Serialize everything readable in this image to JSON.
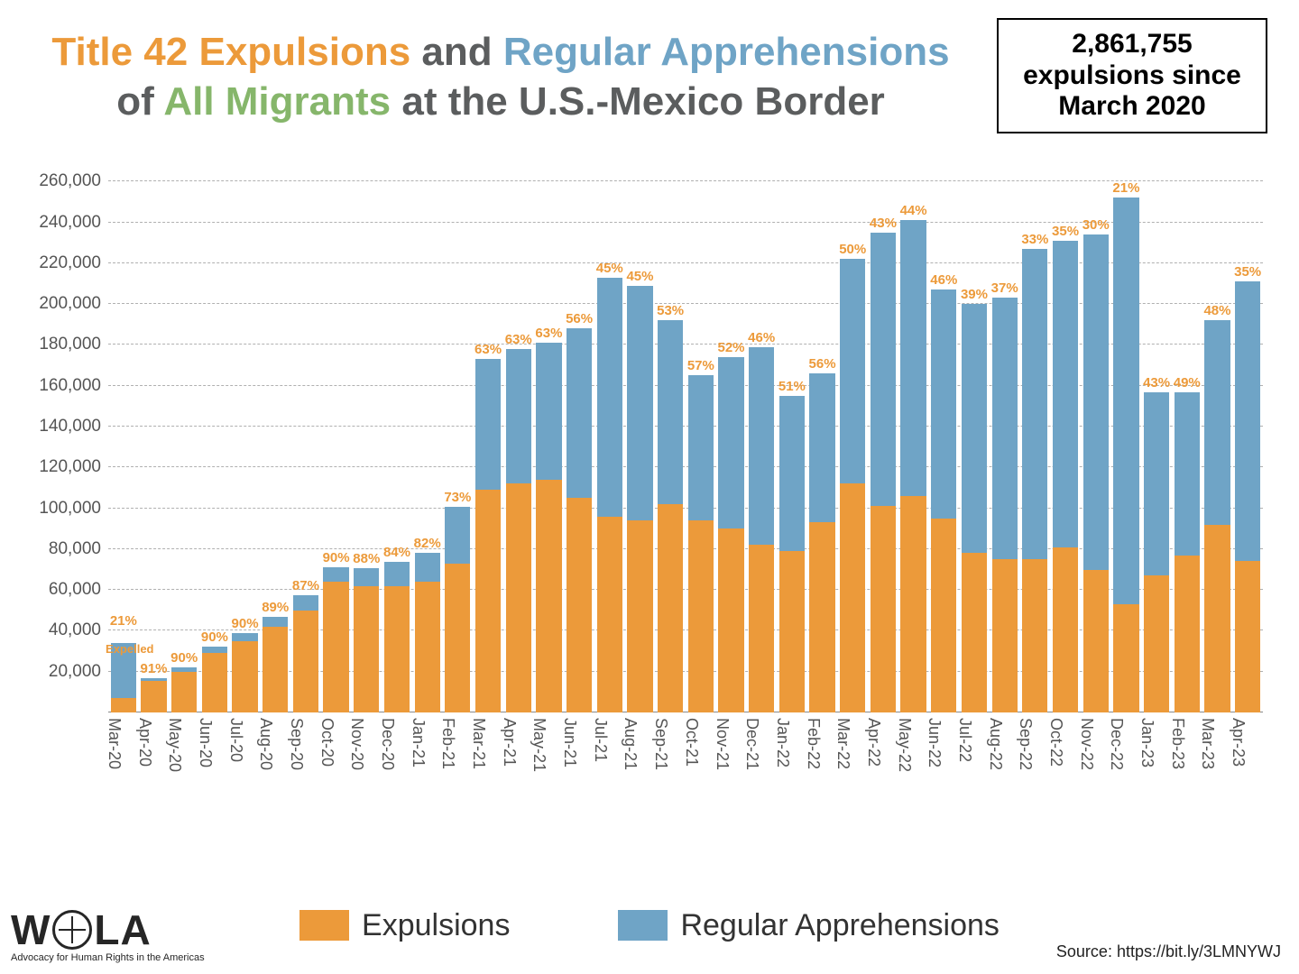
{
  "title": {
    "parts_line1": [
      {
        "text": "Title 42 Expulsions",
        "color": "#ec9a3a"
      },
      {
        "text": " and ",
        "color": "#5b5d5e"
      },
      {
        "text": "Regular Apprehensions",
        "color": "#6fa4c6"
      }
    ],
    "parts_line2": [
      {
        "text": "of ",
        "color": "#5b5d5e"
      },
      {
        "text": "All Migrants",
        "color": "#86b66b"
      },
      {
        "text": " at the U.S.-Mexico Border",
        "color": "#5b5d5e"
      }
    ],
    "fontsize": 44
  },
  "callout": {
    "line1": "2,861,755",
    "line2": "expulsions since",
    "line3": "March 2020"
  },
  "chart": {
    "type": "stacked-bar",
    "y_max": 265000,
    "y_ticks": [
      20000,
      40000,
      60000,
      80000,
      100000,
      120000,
      140000,
      160000,
      180000,
      200000,
      220000,
      240000,
      260000
    ],
    "y_tick_labels": [
      "20,000",
      "40,000",
      "60,000",
      "80,000",
      "100,000",
      "120,000",
      "140,000",
      "160,000",
      "180,000",
      "200,000",
      "220,000",
      "240,000",
      "260,000"
    ],
    "grid_color": "#b0b0b0",
    "expulsions_color": "#ec9a3a",
    "regular_color": "#6fa4c6",
    "label_color": "#ec9a3a",
    "bar_width_ratio": 0.84,
    "data": [
      {
        "label": "Mar-20",
        "exp": 7000,
        "reg": 27000,
        "pct": "21%",
        "extra": "Expelled"
      },
      {
        "label": "Apr-20",
        "exp": 15500,
        "reg": 1500,
        "pct": "91%"
      },
      {
        "label": "May-20",
        "exp": 20000,
        "reg": 2200,
        "pct": "90%"
      },
      {
        "label": "Jun-20",
        "exp": 29000,
        "reg": 3200,
        "pct": "90%"
      },
      {
        "label": "Jul-20",
        "exp": 35000,
        "reg": 4000,
        "pct": "90%"
      },
      {
        "label": "Aug-20",
        "exp": 42000,
        "reg": 5000,
        "pct": "89%"
      },
      {
        "label": "Sep-20",
        "exp": 50000,
        "reg": 7500,
        "pct": "87%"
      },
      {
        "label": "Oct-20",
        "exp": 64000,
        "reg": 7000,
        "pct": "90%"
      },
      {
        "label": "Nov-20",
        "exp": 62000,
        "reg": 8500,
        "pct": "88%"
      },
      {
        "label": "Dec-20",
        "exp": 62000,
        "reg": 11800,
        "pct": "84%"
      },
      {
        "label": "Jan-21",
        "exp": 64000,
        "reg": 14000,
        "pct": "82%"
      },
      {
        "label": "Feb-21",
        "exp": 73000,
        "reg": 27500,
        "pct": "73%"
      },
      {
        "label": "Mar-21",
        "exp": 109000,
        "reg": 64000,
        "pct": "63%"
      },
      {
        "label": "Apr-21",
        "exp": 112000,
        "reg": 66000,
        "pct": "63%"
      },
      {
        "label": "May-21",
        "exp": 114000,
        "reg": 67000,
        "pct": "63%"
      },
      {
        "label": "Jun-21",
        "exp": 105000,
        "reg": 83000,
        "pct": "56%"
      },
      {
        "label": "Jul-21",
        "exp": 96000,
        "reg": 117000,
        "pct": "45%"
      },
      {
        "label": "Aug-21",
        "exp": 94000,
        "reg": 115000,
        "pct": "45%"
      },
      {
        "label": "Sep-21",
        "exp": 102000,
        "reg": 90000,
        "pct": "53%"
      },
      {
        "label": "Oct-21",
        "exp": 94000,
        "reg": 71000,
        "pct": "57%"
      },
      {
        "label": "Nov-21",
        "exp": 90000,
        "reg": 84000,
        "pct": "52%"
      },
      {
        "label": "Dec-21",
        "exp": 82000,
        "reg": 97000,
        "pct": "46%"
      },
      {
        "label": "Jan-22",
        "exp": 79000,
        "reg": 76000,
        "pct": "51%"
      },
      {
        "label": "Feb-22",
        "exp": 93000,
        "reg": 73000,
        "pct": "56%"
      },
      {
        "label": "Mar-22",
        "exp": 112000,
        "reg": 110000,
        "pct": "50%"
      },
      {
        "label": "Apr-22",
        "exp": 101000,
        "reg": 134000,
        "pct": "43%"
      },
      {
        "label": "May-22",
        "exp": 106000,
        "reg": 135000,
        "pct": "44%"
      },
      {
        "label": "Jun-22",
        "exp": 95000,
        "reg": 112000,
        "pct": "46%"
      },
      {
        "label": "Jul-22",
        "exp": 78000,
        "reg": 122000,
        "pct": "39%"
      },
      {
        "label": "Aug-22",
        "exp": 75000,
        "reg": 128000,
        "pct": "37%"
      },
      {
        "label": "Sep-22",
        "exp": 75000,
        "reg": 152000,
        "pct": "33%"
      },
      {
        "label": "Oct-22",
        "exp": 81000,
        "reg": 150000,
        "pct": "35%"
      },
      {
        "label": "Nov-22",
        "exp": 70000,
        "reg": 164000,
        "pct": "30%"
      },
      {
        "label": "Dec-22",
        "exp": 53000,
        "reg": 199000,
        "pct": "21%"
      },
      {
        "label": "Jan-23",
        "exp": 67000,
        "reg": 90000,
        "pct": "43%"
      },
      {
        "label": "Feb-23",
        "exp": 77000,
        "reg": 80000,
        "pct": "49%"
      },
      {
        "label": "Mar-23",
        "exp": 92000,
        "reg": 100000,
        "pct": "48%"
      },
      {
        "label": "Apr-23",
        "exp": 74000,
        "reg": 137000,
        "pct": "35%"
      }
    ]
  },
  "legend": {
    "items": [
      {
        "label": "Expulsions",
        "color": "#ec9a3a"
      },
      {
        "label": "Regular Apprehensions",
        "color": "#6fa4c6"
      }
    ]
  },
  "logo": {
    "prefix": "W",
    "suffix": "LA",
    "tagline": "Advocacy for Human Rights in the Americas"
  },
  "source": "Source: https://bit.ly/3LMNYWJ"
}
